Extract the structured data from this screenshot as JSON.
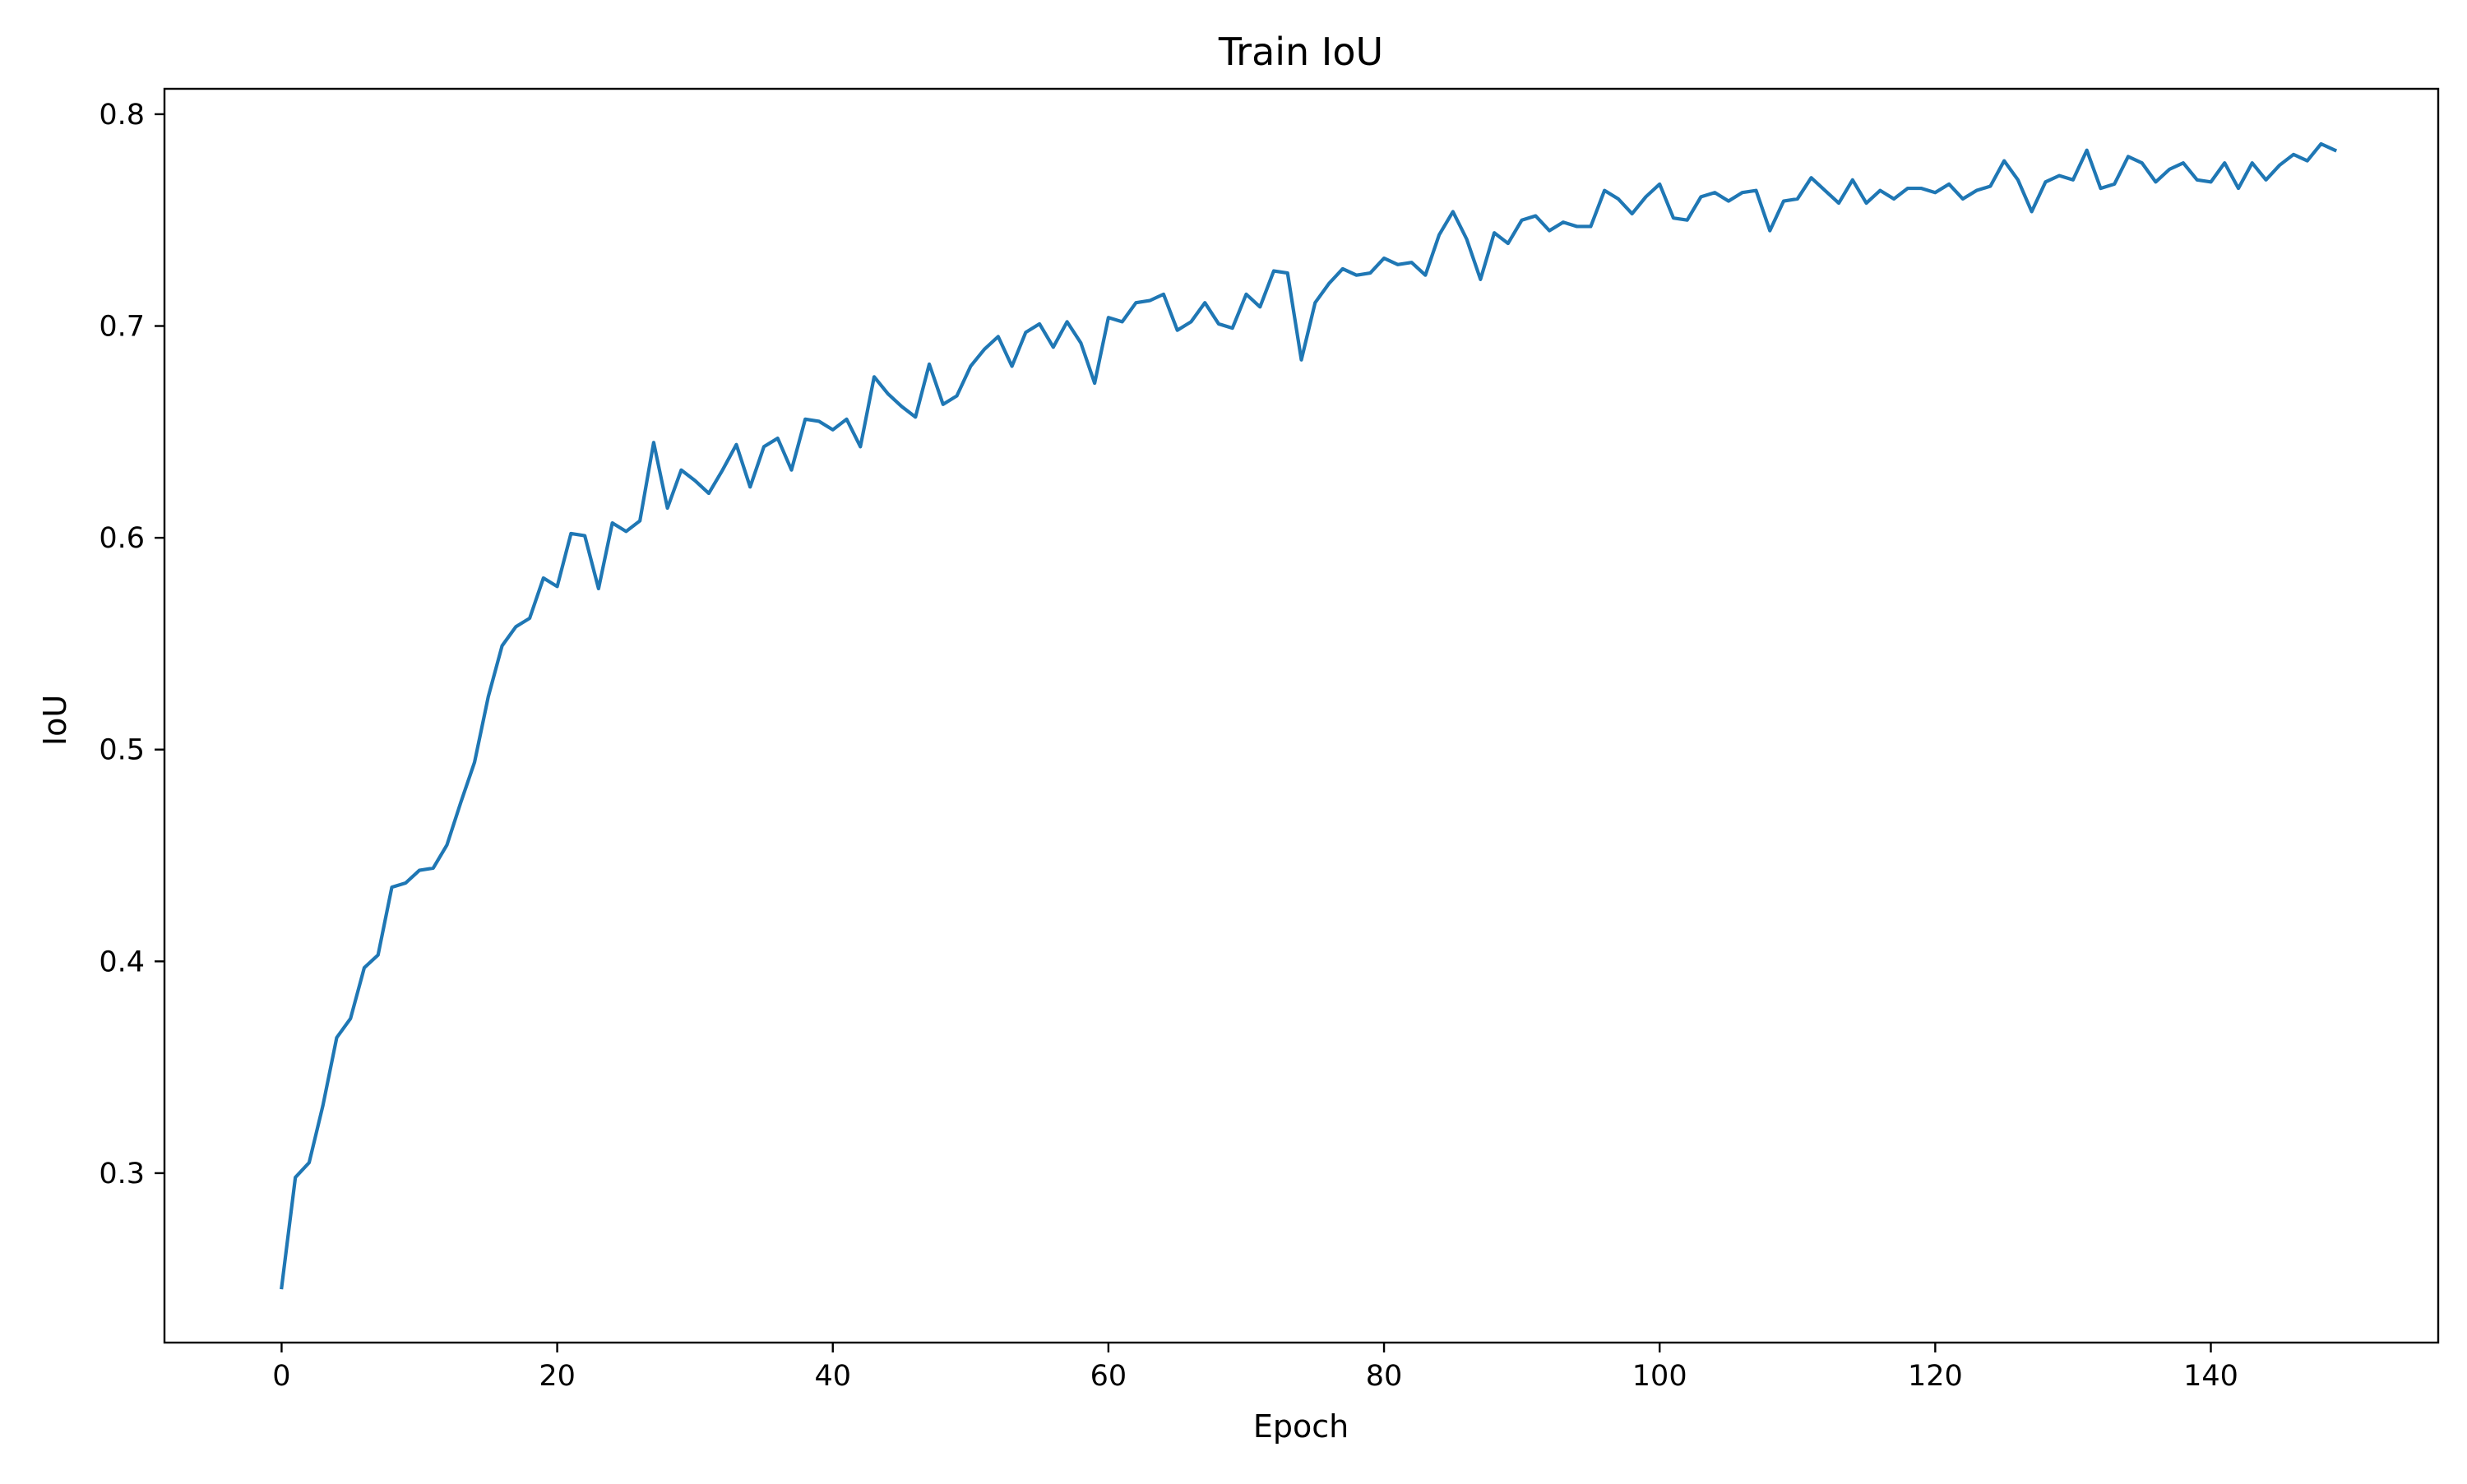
{
  "chart_data": {
    "type": "line",
    "title": "Train IoU",
    "xlabel": "Epoch",
    "ylabel": "IoU",
    "xlim": [
      -8.5,
      156.5
    ],
    "ylim": [
      0.22,
      0.812
    ],
    "xticks": [
      0,
      20,
      40,
      60,
      80,
      100,
      120,
      140
    ],
    "yticks": [
      0.3,
      0.4,
      0.5,
      0.6,
      0.7,
      0.8
    ],
    "xtick_labels": [
      "0",
      "20",
      "40",
      "60",
      "80",
      "100",
      "120",
      "140"
    ],
    "ytick_labels": [
      "0.3",
      "0.4",
      "0.5",
      "0.6",
      "0.7",
      "0.8"
    ],
    "grid": false,
    "legend": "none",
    "line_color": "#1f77b4",
    "series": [
      {
        "x": [
          0,
          1,
          2,
          3,
          4,
          5,
          6,
          7,
          8,
          9,
          10,
          11,
          12,
          13,
          14,
          15,
          16,
          17,
          18,
          19,
          20,
          21,
          22,
          23,
          24,
          25,
          26,
          27,
          28,
          29,
          30,
          31,
          32,
          33,
          34,
          35,
          36,
          37,
          38,
          39,
          40,
          41,
          42,
          43,
          44,
          45,
          46,
          47,
          48,
          49,
          50,
          51,
          52,
          53,
          54,
          55,
          56,
          57,
          58,
          59,
          60,
          61,
          62,
          63,
          64,
          65,
          66,
          67,
          68,
          69,
          70,
          71,
          72,
          73,
          74,
          75,
          76,
          77,
          78,
          79,
          80,
          81,
          82,
          83,
          84,
          85,
          86,
          87,
          88,
          89,
          90,
          91,
          92,
          93,
          94,
          95,
          96,
          97,
          98,
          99,
          100,
          101,
          102,
          103,
          104,
          105,
          106,
          107,
          108,
          109,
          110,
          111,
          112,
          113,
          114,
          115,
          116,
          117,
          118,
          119,
          120,
          121,
          122,
          123,
          124,
          125,
          126,
          127,
          128,
          129,
          130,
          131,
          132,
          133,
          134,
          135,
          136,
          137,
          138,
          139,
          140,
          141,
          142,
          143,
          144,
          145,
          146,
          147,
          148,
          149
        ],
        "values": [
          0.246,
          0.298,
          0.305,
          0.332,
          0.364,
          0.373,
          0.397,
          0.403,
          0.435,
          0.437,
          0.443,
          0.444,
          0.455,
          0.475,
          0.494,
          0.525,
          0.549,
          0.558,
          0.562,
          0.581,
          0.577,
          0.602,
          0.601,
          0.576,
          0.607,
          0.603,
          0.608,
          0.645,
          0.614,
          0.632,
          0.627,
          0.621,
          0.632,
          0.644,
          0.624,
          0.643,
          0.647,
          0.632,
          0.656,
          0.655,
          0.651,
          0.656,
          0.643,
          0.676,
          0.668,
          0.662,
          0.657,
          0.682,
          0.663,
          0.667,
          0.681,
          0.689,
          0.695,
          0.681,
          0.697,
          0.701,
          0.69,
          0.702,
          0.692,
          0.673,
          0.704,
          0.702,
          0.711,
          0.712,
          0.715,
          0.698,
          0.702,
          0.711,
          0.701,
          0.699,
          0.715,
          0.709,
          0.726,
          0.725,
          0.684,
          0.711,
          0.72,
          0.727,
          0.724,
          0.725,
          0.732,
          0.729,
          0.73,
          0.724,
          0.743,
          0.754,
          0.741,
          0.722,
          0.744,
          0.739,
          0.75,
          0.752,
          0.745,
          0.749,
          0.747,
          0.747,
          0.764,
          0.76,
          0.753,
          0.761,
          0.767,
          0.751,
          0.75,
          0.761,
          0.763,
          0.759,
          0.763,
          0.764,
          0.745,
          0.759,
          0.76,
          0.77,
          0.764,
          0.758,
          0.769,
          0.758,
          0.764,
          0.76,
          0.765,
          0.765,
          0.763,
          0.767,
          0.76,
          0.764,
          0.766,
          0.778,
          0.769,
          0.754,
          0.768,
          0.771,
          0.769,
          0.783,
          0.765,
          0.767,
          0.78,
          0.777,
          0.768,
          0.774,
          0.777,
          0.769,
          0.768,
          0.777,
          0.765,
          0.777,
          0.769,
          0.776,
          0.781,
          0.778,
          0.786,
          0.783
        ]
      }
    ]
  }
}
